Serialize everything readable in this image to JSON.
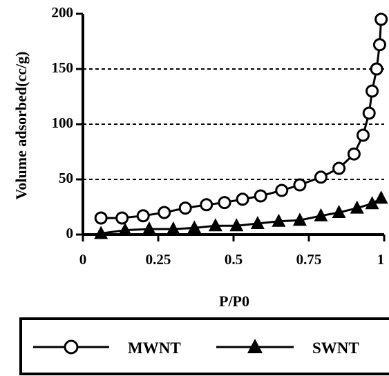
{
  "chart_data": {
    "type": "line",
    "xlabel": "P/P0",
    "ylabel": "Volume adsorbed(cc/g)",
    "xlim": [
      0,
      1
    ],
    "ylim": [
      0,
      200
    ],
    "x_ticks": [
      "0",
      "0.25",
      "0.5",
      "0.75",
      "1"
    ],
    "y_ticks": [
      "0",
      "50",
      "100",
      "150",
      "200"
    ],
    "grid": "dashed horizontal at 50, 100, 150",
    "legend_position": "bottom",
    "series": [
      {
        "name": "MWNT",
        "marker": "open-circle",
        "color": "#000000",
        "x": [
          0.06,
          0.13,
          0.2,
          0.27,
          0.34,
          0.41,
          0.47,
          0.53,
          0.59,
          0.66,
          0.72,
          0.79,
          0.85,
          0.9,
          0.93,
          0.95,
          0.96,
          0.975,
          0.985,
          0.99
        ],
        "y": [
          15,
          15,
          17,
          20,
          24,
          27,
          29,
          32,
          35,
          40,
          45,
          52,
          60,
          73,
          90,
          110,
          130,
          150,
          172,
          195
        ]
      },
      {
        "name": "SWNT",
        "marker": "filled-triangle",
        "color": "#000000",
        "x": [
          0.06,
          0.14,
          0.22,
          0.3,
          0.37,
          0.44,
          0.51,
          0.58,
          0.65,
          0.72,
          0.79,
          0.85,
          0.91,
          0.96,
          0.99
        ],
        "y": [
          1,
          4,
          5,
          5,
          6,
          8,
          8,
          10,
          12,
          13,
          17,
          20,
          24,
          28,
          33
        ]
      }
    ]
  }
}
